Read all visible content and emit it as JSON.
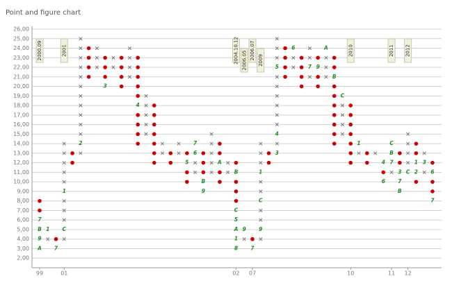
{
  "chart_data": {
    "type": "point-and-figure",
    "title": "Point and figure chart",
    "x_color": "#777777",
    "o_color": "#cc0000",
    "label_color": "#1f8f1f",
    "grid": true,
    "ylim": [
      1,
      26
    ],
    "yticks": [
      {
        "value": 2,
        "label": "2,00"
      },
      {
        "value": 3,
        "label": "3,00"
      },
      {
        "value": 4,
        "label": "4,00"
      },
      {
        "value": 5,
        "label": "5,00"
      },
      {
        "value": 6,
        "label": "6,00"
      },
      {
        "value": 7,
        "label": "7,00"
      },
      {
        "value": 8,
        "label": "8,00"
      },
      {
        "value": 9,
        "label": "9,00"
      },
      {
        "value": 10,
        "label": "10,00"
      },
      {
        "value": 11,
        "label": "11,00"
      },
      {
        "value": 12,
        "label": "12,00"
      },
      {
        "value": 13,
        "label": "13,00"
      },
      {
        "value": 14,
        "label": "14,00"
      },
      {
        "value": 15,
        "label": "15,00"
      },
      {
        "value": 16,
        "label": "16,00"
      },
      {
        "value": 17,
        "label": "17,00"
      },
      {
        "value": 18,
        "label": "18,00"
      },
      {
        "value": 19,
        "label": "19,00"
      },
      {
        "value": 20,
        "label": "20,00"
      },
      {
        "value": 21,
        "label": "21,00"
      },
      {
        "value": 22,
        "label": "22,00"
      },
      {
        "value": 23,
        "label": "23,00"
      },
      {
        "value": 24,
        "label": "24,00"
      },
      {
        "value": 25,
        "label": "25,00"
      },
      {
        "value": 26,
        "label": "26,00"
      }
    ],
    "columns": [
      {
        "kind": "O",
        "year": "99",
        "note": "2000.09",
        "boxes": [
          8,
          7,
          {
            "value": 6,
            "label": "7"
          },
          {
            "value": 5,
            "label": "B"
          },
          {
            "value": 4,
            "label": "9"
          },
          {
            "value": 3,
            "label": "A"
          }
        ]
      },
      {
        "kind": "X",
        "boxes": [
          4,
          {
            "value": 5,
            "label": "1"
          }
        ]
      },
      {
        "kind": "O",
        "boxes": [
          4,
          {
            "value": 3,
            "label": "7"
          }
        ]
      },
      {
        "kind": "X",
        "year": "01",
        "note": "2001",
        "boxes": [
          4,
          {
            "value": 5,
            "label": "C"
          },
          6,
          7,
          8,
          {
            "value": 9,
            "label": "1"
          },
          10,
          11,
          12,
          13,
          14
        ]
      },
      {
        "kind": "O",
        "boxes": [
          13,
          12
        ]
      },
      {
        "kind": "X",
        "boxes": [
          13,
          {
            "value": 14,
            "label": "2"
          },
          15,
          16,
          17,
          18,
          19,
          20,
          21,
          22,
          23,
          24,
          25
        ]
      },
      {
        "kind": "O",
        "boxes": [
          24,
          23,
          22,
          21
        ]
      },
      {
        "kind": "X",
        "boxes": [
          22,
          23,
          24
        ]
      },
      {
        "kind": "O",
        "boxes": [
          23,
          22,
          21,
          {
            "value": 20,
            "label": "3"
          }
        ]
      },
      {
        "kind": "X",
        "boxes": [
          22,
          23
        ]
      },
      {
        "kind": "O",
        "boxes": [
          23,
          22,
          21,
          20
        ]
      },
      {
        "kind": "X",
        "boxes": [
          21,
          22,
          23,
          24
        ]
      },
      {
        "kind": "O",
        "boxes": [
          23,
          22,
          21,
          20,
          19,
          {
            "value": 18,
            "label": "4"
          },
          17,
          16,
          15,
          14
        ]
      },
      {
        "kind": "X",
        "boxes": [
          15,
          16,
          17,
          18,
          19
        ]
      },
      {
        "kind": "O",
        "boxes": [
          18,
          17,
          16,
          15,
          14,
          13,
          12
        ]
      },
      {
        "kind": "X",
        "boxes": [
          13,
          14
        ]
      },
      {
        "kind": "O",
        "boxes": [
          13,
          12
        ]
      },
      {
        "kind": "X",
        "boxes": [
          13,
          14
        ]
      },
      {
        "kind": "O",
        "boxes": [
          13,
          {
            "value": 12,
            "label": "5"
          },
          11,
          10
        ]
      },
      {
        "kind": "X",
        "boxes": [
          11,
          12,
          {
            "value": 13,
            "label": "6"
          },
          {
            "value": 14,
            "label": "7"
          }
        ]
      },
      {
        "kind": "O",
        "boxes": [
          13,
          12,
          11,
          {
            "value": 10,
            "label": "B"
          },
          {
            "value": 9,
            "label": "9"
          }
        ]
      },
      {
        "kind": "X",
        "boxes": [
          11,
          12,
          13,
          14,
          15
        ]
      },
      {
        "kind": "O",
        "boxes": [
          14,
          13,
          {
            "value": 12,
            "label": "A"
          },
          11,
          10
        ]
      },
      {
        "kind": "X",
        "boxes": [
          11,
          12
        ]
      },
      {
        "kind": "O",
        "year": "02",
        "note": "2004.10.12",
        "boxes": [
          12,
          {
            "value": 11,
            "label": "B"
          },
          10,
          9,
          8,
          {
            "value": 7,
            "label": "C"
          },
          {
            "value": 6,
            "label": "5"
          },
          {
            "value": 5,
            "label": "A"
          },
          {
            "value": 4,
            "label": "1"
          },
          {
            "value": 3,
            "label": "8"
          }
        ]
      },
      {
        "kind": "X",
        "note": "2006.05",
        "boxes": [
          4,
          {
            "value": 5,
            "label": "9"
          }
        ]
      },
      {
        "kind": "O",
        "year": "07",
        "note": "2006.07",
        "boxes": [
          4,
          {
            "value": 3,
            "label": "7"
          }
        ]
      },
      {
        "kind": "X",
        "note": "2009",
        "boxes": [
          4,
          {
            "value": 5,
            "label": "9"
          },
          6,
          7,
          {
            "value": 8,
            "label": "C"
          },
          9,
          10,
          {
            "value": 11,
            "label": "1"
          },
          12,
          13,
          14
        ]
      },
      {
        "kind": "O",
        "boxes": [
          13,
          12
        ]
      },
      {
        "kind": "X",
        "boxes": [
          {
            "value": 13,
            "label": "3"
          },
          14,
          {
            "value": 15,
            "label": "4"
          },
          16,
          17,
          18,
          19,
          20,
          21,
          {
            "value": 22,
            "label": "5"
          },
          23,
          24,
          25
        ]
      },
      {
        "kind": "O",
        "boxes": [
          24,
          23,
          22,
          21
        ]
      },
      {
        "kind": "X",
        "boxes": [
          22,
          23,
          {
            "value": 24,
            "label": "6"
          }
        ]
      },
      {
        "kind": "O",
        "boxes": [
          23,
          22,
          21,
          20
        ]
      },
      {
        "kind": "X",
        "boxes": [
          21,
          {
            "value": 22,
            "label": "7"
          },
          23,
          24
        ]
      },
      {
        "kind": "O",
        "boxes": [
          23,
          {
            "value": 22,
            "label": "9"
          },
          21,
          20
        ]
      },
      {
        "kind": "X",
        "boxes": [
          21,
          22,
          23,
          {
            "value": 24,
            "label": "A"
          }
        ]
      },
      {
        "kind": "O",
        "boxes": [
          23,
          22,
          {
            "value": 21,
            "label": "B"
          },
          20,
          19,
          18,
          17,
          16,
          15,
          14
        ]
      },
      {
        "kind": "X",
        "boxes": [
          15,
          16,
          17,
          18,
          {
            "value": 19,
            "label": "C"
          }
        ]
      },
      {
        "kind": "O",
        "year": "10",
        "note": "2010",
        "boxes": [
          18,
          17,
          16,
          15,
          14,
          13,
          12
        ]
      },
      {
        "kind": "X",
        "boxes": [
          13,
          {
            "value": 14,
            "label": "1"
          }
        ]
      },
      {
        "kind": "O",
        "boxes": [
          13,
          12
        ]
      },
      {
        "kind": "X",
        "boxes": [
          13
        ]
      },
      {
        "kind": "O",
        "boxes": [
          {
            "value": 12,
            "label": "4"
          },
          11,
          {
            "value": 10,
            "label": "6"
          }
        ]
      },
      {
        "kind": "X",
        "year": "11",
        "note": "2011",
        "boxes": [
          11,
          {
            "value": 12,
            "label": "7"
          },
          {
            "value": 13,
            "label": "B"
          },
          {
            "value": 14,
            "label": "C"
          }
        ]
      },
      {
        "kind": "O",
        "boxes": [
          13,
          12,
          {
            "value": 11,
            "label": "3"
          },
          {
            "value": 10,
            "label": "7"
          },
          {
            "value": 9,
            "label": "B"
          }
        ]
      },
      {
        "kind": "X",
        "year": "12",
        "note": "2012",
        "boxes": [
          {
            "value": 11,
            "label": "C"
          },
          12,
          13,
          14,
          15
        ]
      },
      {
        "kind": "O",
        "boxes": [
          14,
          13,
          {
            "value": 12,
            "label": "1"
          },
          {
            "value": 11,
            "label": "2"
          },
          10
        ]
      },
      {
        "kind": "X",
        "boxes": [
          11,
          {
            "value": 12,
            "label": "3"
          },
          13
        ]
      },
      {
        "kind": "O",
        "boxes": [
          12,
          {
            "value": 11,
            "label": "6"
          },
          10,
          9,
          {
            "value": 8,
            "label": "7"
          }
        ]
      }
    ]
  }
}
